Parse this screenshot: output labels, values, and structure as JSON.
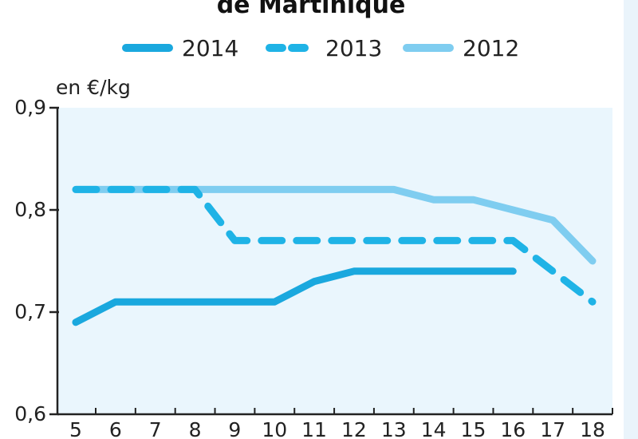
{
  "chart_data": {
    "type": "line",
    "title": "de Martinique",
    "ylabel": "en €/kg",
    "x": [
      5,
      6,
      7,
      8,
      9,
      10,
      11,
      12,
      13,
      14,
      15,
      16,
      17,
      18
    ],
    "y_ticks": [
      "0,6",
      "0,7",
      "0,8",
      "0,9"
    ],
    "ylim": [
      0.6,
      0.9
    ],
    "xlim": [
      5,
      18
    ],
    "grid": false,
    "legend_position": "top",
    "series": [
      {
        "name": "2014",
        "style": "solid",
        "color": "#1aa8de",
        "x": [
          5,
          6,
          7,
          8,
          9,
          10,
          11,
          12,
          13,
          14,
          15,
          16
        ],
        "values": [
          0.69,
          0.71,
          0.71,
          0.71,
          0.71,
          0.71,
          0.73,
          0.74,
          0.74,
          0.74,
          0.74,
          0.74
        ]
      },
      {
        "name": "2013",
        "style": "dashed",
        "color": "#1fb3e6",
        "x": [
          5,
          6,
          7,
          8,
          9,
          10,
          11,
          12,
          13,
          14,
          15,
          16,
          17,
          18
        ],
        "values": [
          0.82,
          0.82,
          0.82,
          0.82,
          0.77,
          0.77,
          0.77,
          0.77,
          0.77,
          0.77,
          0.77,
          0.77,
          0.74,
          0.71
        ]
      },
      {
        "name": "2012",
        "style": "solid",
        "color": "#7fcdf0",
        "x": [
          5,
          6,
          7,
          8,
          9,
          10,
          11,
          12,
          13,
          14,
          15,
          16,
          17,
          18
        ],
        "values": [
          0.82,
          0.82,
          0.82,
          0.82,
          0.82,
          0.82,
          0.82,
          0.82,
          0.82,
          0.81,
          0.81,
          0.8,
          0.79,
          0.75
        ]
      }
    ]
  }
}
